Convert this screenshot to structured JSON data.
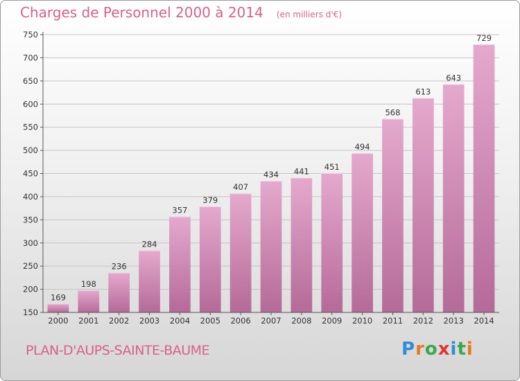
{
  "title": "Charges de Personnel 2000 à 2014",
  "subtitle": "(en milliers d'€)",
  "commune": "PLAN-D'AUPS-SAINTE-BAUME",
  "brand": "Proxiti",
  "brand_colors": [
    "#2e8ed6",
    "#e8781e",
    "#3aa84a",
    "#e3342f",
    "#2e8ed6",
    "#3aa84a",
    "#e8781e"
  ],
  "colors": {
    "bar_light": "#e5a9cd",
    "bar_dark": "#b56a98",
    "accent": "#d9608a"
  },
  "chart_data": {
    "type": "bar",
    "title": "Charges de Personnel 2000 à 2014",
    "subtitle": "(en milliers d'€)",
    "xlabel": "",
    "ylabel": "",
    "categories": [
      "2000",
      "2001",
      "2002",
      "2003",
      "2004",
      "2005",
      "2006",
      "2007",
      "2008",
      "2009",
      "2010",
      "2011",
      "2012",
      "2013",
      "2014"
    ],
    "values": [
      169,
      198,
      236,
      284,
      357,
      379,
      407,
      434,
      441,
      451,
      494,
      568,
      613,
      643,
      729
    ],
    "ylim": [
      150,
      750
    ],
    "yticks": [
      150,
      200,
      250,
      300,
      350,
      400,
      450,
      500,
      550,
      600,
      650,
      700,
      750
    ],
    "grid": true
  }
}
